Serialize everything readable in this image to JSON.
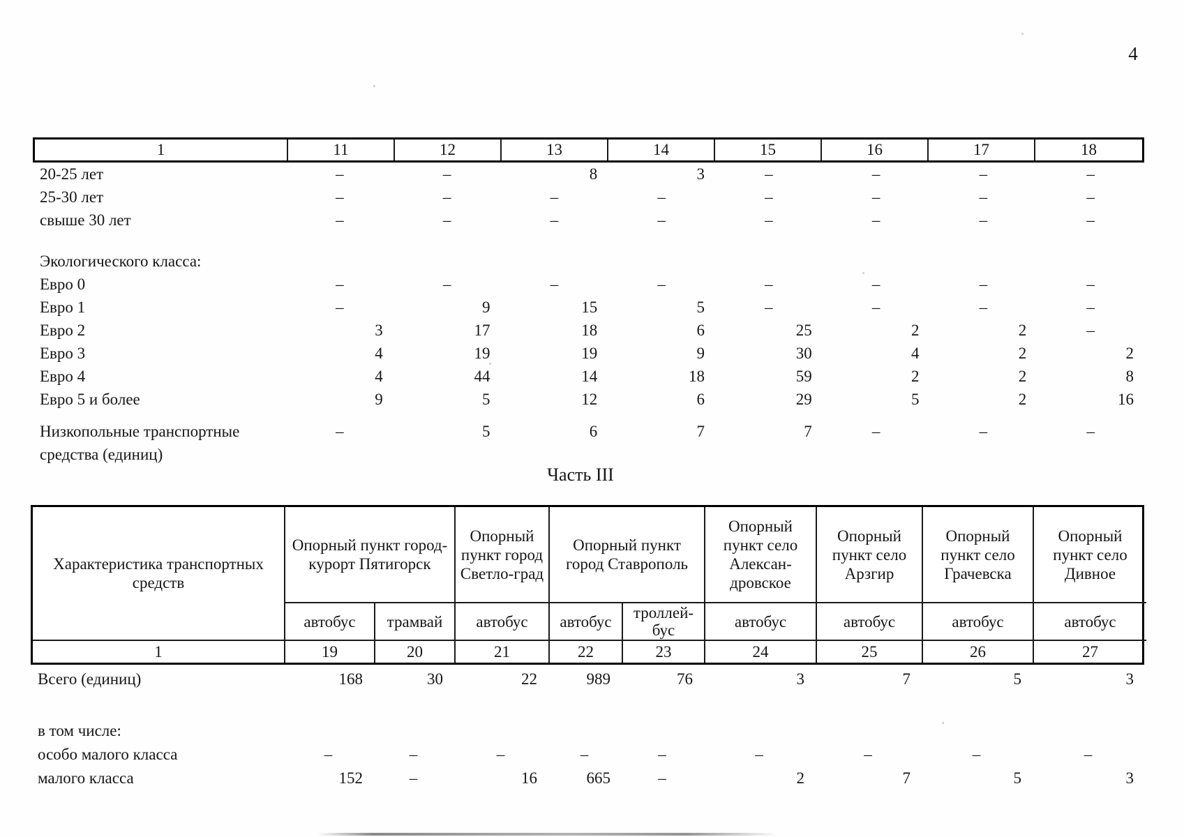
{
  "page": {
    "number": "4",
    "part_title": "Часть III"
  },
  "colors": {
    "ink": "#161616",
    "border": "#000000",
    "paper": "#fefefe"
  },
  "table1": {
    "header": [
      "1",
      "11",
      "12",
      "13",
      "14",
      "15",
      "16",
      "17",
      "18"
    ],
    "sections": [
      {
        "rows": [
          {
            "label": "20-25 лет",
            "values": [
              "–",
              "–",
              "8",
              "3",
              "–",
              "–",
              "–",
              "–"
            ]
          },
          {
            "label": "25-30 лет",
            "values": [
              "–",
              "–",
              "–",
              "–",
              "–",
              "–",
              "–",
              "–"
            ]
          },
          {
            "label": "свыше 30 лет",
            "values": [
              "–",
              "–",
              "–",
              "–",
              "–",
              "–",
              "–",
              "–"
            ]
          }
        ]
      },
      {
        "rows": [
          {
            "label": "Экологического класса:",
            "values": []
          },
          {
            "label": "Евро 0",
            "values": [
              "–",
              "–",
              "–",
              "–",
              "–",
              "–",
              "–",
              "–"
            ]
          },
          {
            "label": "Евро 1",
            "values": [
              "–",
              "9",
              "15",
              "5",
              "–",
              "–",
              "–",
              "–"
            ]
          },
          {
            "label": "Евро 2",
            "values": [
              "3",
              "17",
              "18",
              "6",
              "25",
              "2",
              "2",
              "–"
            ]
          },
          {
            "label": "Евро 3",
            "values": [
              "4",
              "19",
              "19",
              "9",
              "30",
              "4",
              "2",
              "2"
            ]
          },
          {
            "label": "Евро 4",
            "values": [
              "4",
              "44",
              "14",
              "18",
              "59",
              "2",
              "2",
              "8"
            ]
          },
          {
            "label": "Евро 5 и более",
            "values": [
              "9",
              "5",
              "12",
              "6",
              "29",
              "5",
              "2",
              "16"
            ]
          }
        ]
      },
      {
        "rows": [
          {
            "label": "Низкопольные транспортные средства (единиц)",
            "values": [
              "–",
              "5",
              "6",
              "7",
              "7",
              "–",
              "–",
              "–"
            ]
          }
        ]
      }
    ]
  },
  "table2": {
    "header_col1": "Характеристика транспортных средств",
    "groups": [
      {
        "title": "Опорный пункт город-курорт Пятигорск",
        "subs": [
          "автобус",
          "трамвай"
        ]
      },
      {
        "title": "Опорный пункт город Светло-град",
        "subs": [
          "автобус"
        ]
      },
      {
        "title": "Опорный пункт город Ставрополь",
        "subs": [
          "автобус",
          "троллей-бус"
        ]
      },
      {
        "title": "Опорный пункт село Алексан-дровское",
        "subs": [
          "автобус"
        ]
      },
      {
        "title": "Опорный пункт село Арзгир",
        "subs": [
          "автобус"
        ]
      },
      {
        "title": "Опорный пункт село Грачевска",
        "subs": [
          "автобус"
        ]
      },
      {
        "title": "Опорный пункт село Дивное",
        "subs": [
          "автобус"
        ]
      }
    ],
    "numbering": [
      "1",
      "19",
      "20",
      "21",
      "22",
      "23",
      "24",
      "25",
      "26",
      "27"
    ],
    "body": [
      {
        "label": "Всего (единиц)",
        "values": [
          "168",
          "30",
          "22",
          "989",
          "76",
          "3",
          "7",
          "5",
          "3"
        ]
      },
      {
        "label": "в том числе:",
        "values": [],
        "gap_before": true
      },
      {
        "label": "особо малого класса",
        "values": [
          "–",
          "–",
          "–",
          "–",
          "–",
          "–",
          "–",
          "–",
          "–"
        ]
      },
      {
        "label": "малого класса",
        "values": [
          "152",
          "–",
          "16",
          "665",
          "–",
          "2",
          "7",
          "5",
          "3"
        ]
      }
    ]
  }
}
